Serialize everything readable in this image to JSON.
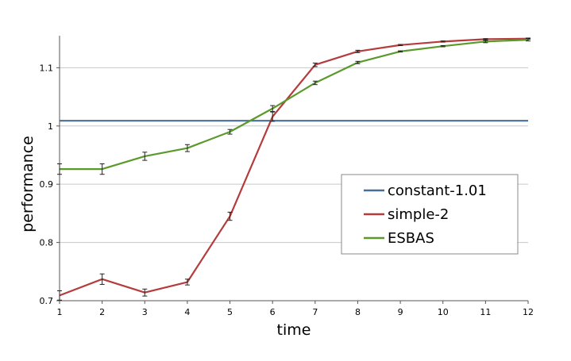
{
  "chart_data": {
    "type": "line",
    "title": "",
    "xlabel": "time",
    "ylabel": "performance",
    "x": [
      1,
      2,
      3,
      4,
      5,
      6,
      7,
      8,
      9,
      10,
      11,
      12
    ],
    "x_ticks": [
      "1",
      "2",
      "3",
      "4",
      "5",
      "6",
      "7",
      "8",
      "9",
      "10",
      "11",
      "12"
    ],
    "y_ticks": [
      "0.7",
      "0.8",
      "0.9",
      "1",
      "1.1"
    ],
    "xlim": [
      1,
      12
    ],
    "ylim": [
      0.7,
      1.155
    ],
    "grid": "horizontal",
    "legend_position": "right",
    "series": [
      {
        "name": "constant-1.01",
        "color": "#4a6f97",
        "values": [
          1.009,
          1.009,
          1.009,
          1.009,
          1.009,
          1.009,
          1.009,
          1.009,
          1.009,
          1.009,
          1.009,
          1.009
        ],
        "error": null
      },
      {
        "name": "simple-2",
        "color": "#b43c3c",
        "values": [
          0.709,
          0.737,
          0.714,
          0.732,
          0.845,
          1.016,
          1.105,
          1.128,
          1.139,
          1.145,
          1.149,
          1.15
        ],
        "error": [
          0.008,
          0.009,
          0.006,
          0.005,
          0.007,
          0.008,
          0.003,
          0.002,
          0.001,
          0.001,
          0.001,
          0.001
        ]
      },
      {
        "name": "ESBAS",
        "color": "#5a9a2a",
        "values": [
          0.926,
          0.926,
          0.948,
          0.962,
          0.99,
          1.03,
          1.074,
          1.109,
          1.128,
          1.137,
          1.145,
          1.148
        ],
        "error": [
          0.009,
          0.009,
          0.007,
          0.006,
          0.004,
          0.005,
          0.003,
          0.002,
          0.001,
          0.001,
          0.002,
          0.002
        ]
      }
    ]
  }
}
